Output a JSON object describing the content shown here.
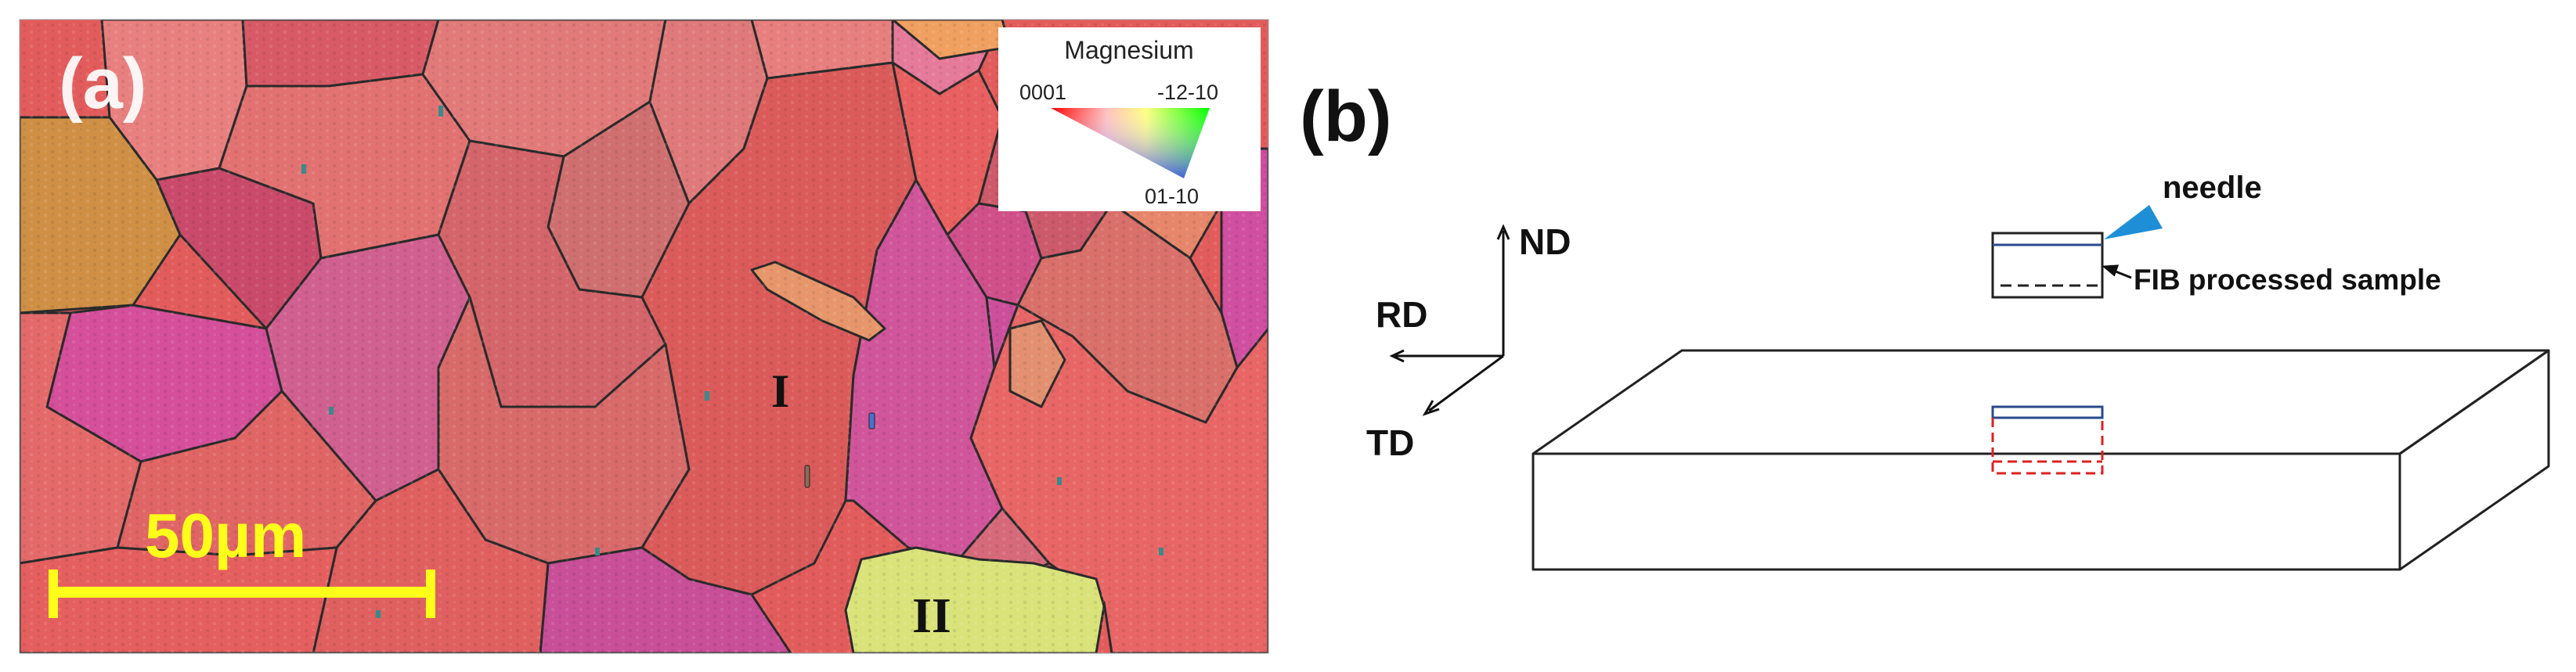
{
  "panel_a": {
    "label": "(a)",
    "grain_labels": [
      "I",
      "II"
    ],
    "scale_bar": {
      "label": "50µm",
      "color": "#ffff1a"
    },
    "legend": {
      "title": "Magnesium",
      "corner_top_left": "0001",
      "corner_top_right": "-12-10",
      "corner_bottom": "01-10",
      "colors": {
        "0001": "#ff0000",
        "-12-10": "#00ff00",
        "01-10": "#0000ff"
      }
    },
    "colors": {
      "matrix": "#e35c5c",
      "magenta": "#d54f9a",
      "orange": "#cf9046",
      "yellow_green": "#d9e37a",
      "grain_boundary": "#2a2a2a"
    }
  },
  "panel_b": {
    "label": "(b)",
    "axes": {
      "nd": "ND",
      "rd": "RD",
      "td": "TD"
    },
    "needle_label": "needle",
    "sample_label": "FIB processed sample",
    "colors": {
      "needle": "#1e8fd6",
      "cut_outline": "#e02020",
      "sample_edge": "#2a4a8a"
    }
  }
}
